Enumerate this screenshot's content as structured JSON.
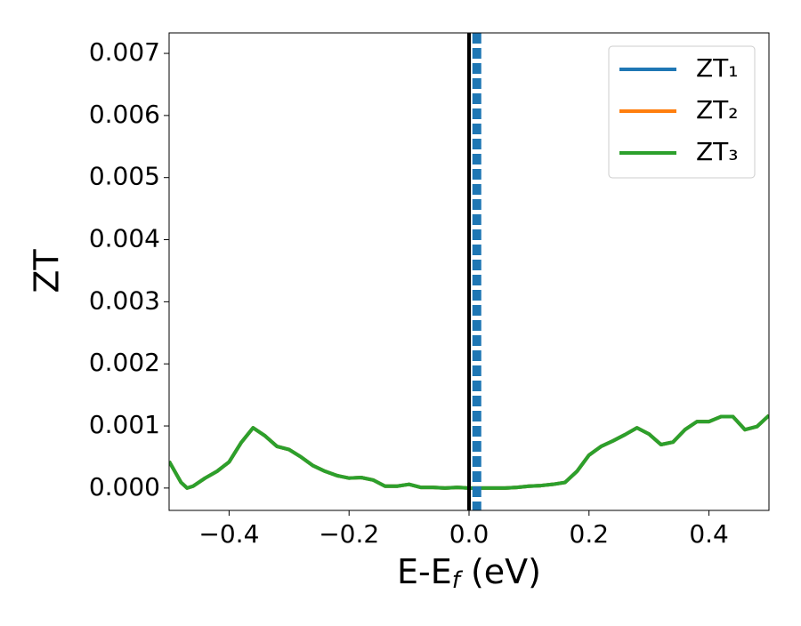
{
  "chart_data": {
    "type": "line",
    "xlabel": [
      "E-E",
      "f",
      " (eV)"
    ],
    "ylabel": "ZT",
    "x": [
      -0.5,
      -0.48,
      -0.47,
      -0.46,
      -0.44,
      -0.42,
      -0.4,
      -0.38,
      -0.36,
      -0.34,
      -0.32,
      -0.3,
      -0.28,
      -0.26,
      -0.24,
      -0.22,
      -0.2,
      -0.18,
      -0.16,
      -0.14,
      -0.12,
      -0.1,
      -0.08,
      -0.06,
      -0.04,
      -0.02,
      0,
      0.02,
      0.04,
      0.06,
      0.08,
      0.1,
      0.12,
      0.14,
      0.16,
      0.18,
      0.2,
      0.22,
      0.24,
      0.26,
      0.28,
      0.3,
      0.32,
      0.34,
      0.36,
      0.38,
      0.4,
      0.42,
      0.44,
      0.46,
      0.48,
      0.5
    ],
    "series": [
      {
        "name": "ZT₁",
        "color": "#1f77b4",
        "values": [
          0.00043,
          9e-05,
          0,
          3e-05,
          0.00016,
          0.00027,
          0.00042,
          0.00073,
          0.00097,
          0.00084,
          0.00067,
          0.00062,
          0.0005,
          0.00036,
          0.00027,
          0.0002,
          0.00016,
          0.00017,
          0.00013,
          3e-05,
          3e-05,
          6e-05,
          1e-05,
          1e-05,
          0,
          1e-05,
          0,
          0,
          0,
          0,
          1e-05,
          3e-05,
          4e-05,
          6e-05,
          9e-05,
          0.00027,
          0.00053,
          0.00067,
          0.00076,
          0.00086,
          0.00097,
          0.00087,
          0.0007,
          0.00074,
          0.00094,
          0.00107,
          0.00107,
          0.00115,
          0.00115,
          0.00094,
          0.00099,
          0.00117
        ]
      },
      {
        "name": "ZT₂",
        "color": "#ff7f0e",
        "values": [
          0.00043,
          9e-05,
          0,
          3e-05,
          0.00016,
          0.00027,
          0.00042,
          0.00073,
          0.00097,
          0.00084,
          0.00067,
          0.00062,
          0.0005,
          0.00036,
          0.00027,
          0.0002,
          0.00016,
          0.00017,
          0.00013,
          3e-05,
          3e-05,
          6e-05,
          1e-05,
          1e-05,
          0,
          1e-05,
          0,
          0,
          0,
          0,
          1e-05,
          3e-05,
          4e-05,
          6e-05,
          9e-05,
          0.00027,
          0.00053,
          0.00067,
          0.00076,
          0.00086,
          0.00097,
          0.00087,
          0.0007,
          0.00074,
          0.00094,
          0.00107,
          0.00107,
          0.00115,
          0.00115,
          0.00094,
          0.00099,
          0.00117
        ]
      },
      {
        "name": "ZT₃",
        "color": "#2ca02c",
        "values": [
          0.00043,
          9e-05,
          0,
          3e-05,
          0.00016,
          0.00027,
          0.00042,
          0.00073,
          0.00097,
          0.00084,
          0.00067,
          0.00062,
          0.0005,
          0.00036,
          0.00027,
          0.0002,
          0.00016,
          0.00017,
          0.00013,
          3e-05,
          3e-05,
          6e-05,
          1e-05,
          1e-05,
          0,
          1e-05,
          0,
          0,
          0,
          0,
          1e-05,
          3e-05,
          4e-05,
          6e-05,
          9e-05,
          0.00027,
          0.00053,
          0.00067,
          0.00076,
          0.00086,
          0.00097,
          0.00087,
          0.0007,
          0.00074,
          0.00094,
          0.00107,
          0.00107,
          0.00115,
          0.00115,
          0.00094,
          0.00099,
          0.00117
        ]
      }
    ],
    "vlines": [
      {
        "x": 0,
        "color": "#000000",
        "dashed": false
      },
      {
        "x": 0.013,
        "color": "#1f77b4",
        "dashed": true
      }
    ],
    "xlim": [
      -0.5,
      0.5
    ],
    "ylim": [
      -0.00036,
      0.00733
    ],
    "xticks": [
      {
        "value": -0.4,
        "label": "−0.4"
      },
      {
        "value": -0.2,
        "label": "−0.2"
      },
      {
        "value": 0,
        "label": "0.0"
      },
      0.2,
      0.4
    ],
    "yticks": [
      {
        "value": 0,
        "label": "0.000"
      },
      0.001,
      0.002,
      0.003,
      0.004,
      0.005,
      0.006,
      0.007
    ],
    "legend": "upper right"
  }
}
